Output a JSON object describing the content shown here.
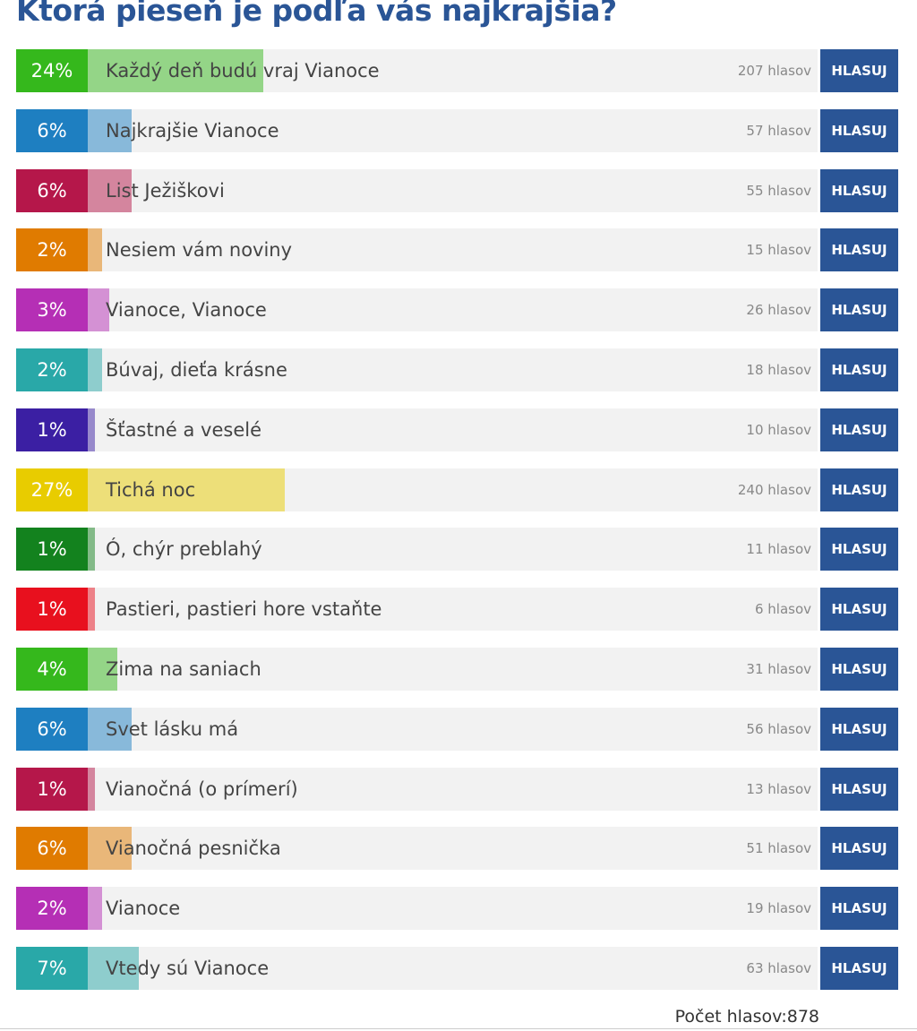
{
  "poll": {
    "title": "Ktorá pieseň je podľa vás najkrajšia?",
    "options": [
      {
        "label": "Každý deň budú vraj Vianoce",
        "percent": 24,
        "percent_label": "24%",
        "votes_label": "207 hlasov",
        "button": "HLASUJ",
        "color": "#35b81c"
      },
      {
        "label": "Najkrajšie Vianoce",
        "percent": 6,
        "percent_label": "6%",
        "votes_label": "57 hlasov",
        "button": "HLASUJ",
        "color": "#1e7fc1"
      },
      {
        "label": "List Ježiškovi",
        "percent": 6,
        "percent_label": "6%",
        "votes_label": "55 hlasov",
        "button": "HLASUJ",
        "color": "#b5174a"
      },
      {
        "label": "Nesiem vám noviny",
        "percent": 2,
        "percent_label": "2%",
        "votes_label": "15 hlasov",
        "button": "HLASUJ",
        "color": "#e07b00"
      },
      {
        "label": "Vianoce, Vianoce",
        "percent": 3,
        "percent_label": "3%",
        "votes_label": "26 hlasov",
        "button": "HLASUJ",
        "color": "#b52fb5"
      },
      {
        "label": "Búvaj, dieťa krásne",
        "percent": 2,
        "percent_label": "2%",
        "votes_label": "18 hlasov",
        "button": "HLASUJ",
        "color": "#29a8a8"
      },
      {
        "label": "Šťastné a veselé",
        "percent": 1,
        "percent_label": "1%",
        "votes_label": "10 hlasov",
        "button": "HLASUJ",
        "color": "#3b1fa3"
      },
      {
        "label": "Tichá noc",
        "percent": 27,
        "percent_label": "27%",
        "votes_label": "240 hlasov",
        "button": "HLASUJ",
        "color": "#e8cc00"
      },
      {
        "label": "Ó, chýr preblahý",
        "percent": 1,
        "percent_label": "1%",
        "votes_label": "11 hlasov",
        "button": "HLASUJ",
        "color": "#13821e"
      },
      {
        "label": "Pastieri, pastieri hore vstaňte",
        "percent": 1,
        "percent_label": "1%",
        "votes_label": "6 hlasov",
        "button": "HLASUJ",
        "color": "#e8101e"
      },
      {
        "label": "Zima na saniach",
        "percent": 4,
        "percent_label": "4%",
        "votes_label": "31 hlasov",
        "button": "HLASUJ",
        "color": "#35b81c"
      },
      {
        "label": "Svet lásku má",
        "percent": 6,
        "percent_label": "6%",
        "votes_label": "56 hlasov",
        "button": "HLASUJ",
        "color": "#1e7fc1"
      },
      {
        "label": "Vianočná (o prímerí)",
        "percent": 1,
        "percent_label": "1%",
        "votes_label": "13 hlasov",
        "button": "HLASUJ",
        "color": "#b5174a"
      },
      {
        "label": "Vianočná pesnička",
        "percent": 6,
        "percent_label": "6%",
        "votes_label": "51 hlasov",
        "button": "HLASUJ",
        "color": "#e07b00"
      },
      {
        "label": "Vianoce",
        "percent": 2,
        "percent_label": "2%",
        "votes_label": "19 hlasov",
        "button": "HLASUJ",
        "color": "#b52fb5"
      },
      {
        "label": "Vtedy sú Vianoce",
        "percent": 7,
        "percent_label": "7%",
        "votes_label": "63 hlasov",
        "button": "HLASUJ",
        "color": "#29a8a8"
      }
    ],
    "total_label": "Počet hlasov:878"
  }
}
